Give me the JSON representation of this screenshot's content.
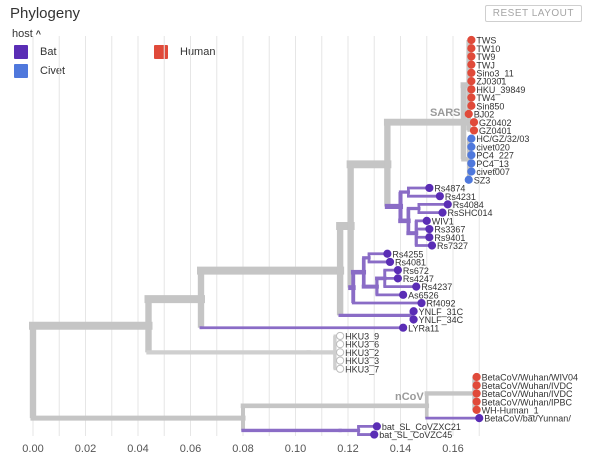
{
  "header": {
    "title": "Phylogeny",
    "reset_label": "RESET LAYOUT"
  },
  "legend": {
    "heading": "host",
    "items": [
      {
        "label": "Bat",
        "color": "#5a2db5"
      },
      {
        "label": "Civet",
        "color": "#4f78dc"
      },
      {
        "label": "Human",
        "color": "#e04a3a"
      }
    ]
  },
  "chart_data": {
    "type": "tree",
    "xlim": [
      0,
      0.17
    ],
    "x_ticks": [
      "0.00",
      "0.02",
      "0.04",
      "0.06",
      "0.08",
      "0.10",
      "0.12",
      "0.14",
      "0.16"
    ],
    "grid": true,
    "clade_labels": [
      {
        "label": "SARS",
        "node": "n_sars"
      },
      {
        "label": "nCoV",
        "node": "n_ncov"
      }
    ],
    "tips": [
      {
        "name": "TWS",
        "x": 0.167,
        "host": "Human"
      },
      {
        "name": "TW10",
        "x": 0.167,
        "host": "Human"
      },
      {
        "name": "TW9",
        "x": 0.167,
        "host": "Human"
      },
      {
        "name": "TWJ",
        "x": 0.167,
        "host": "Human"
      },
      {
        "name": "Sino3_11",
        "x": 0.167,
        "host": "Human"
      },
      {
        "name": "ZJ0301",
        "x": 0.167,
        "host": "Human"
      },
      {
        "name": "HKU_39849",
        "x": 0.167,
        "host": "Human"
      },
      {
        "name": "TW4",
        "x": 0.167,
        "host": "Human"
      },
      {
        "name": "Sin850",
        "x": 0.167,
        "host": "Human"
      },
      {
        "name": "BJ02",
        "x": 0.166,
        "host": "Human"
      },
      {
        "name": "GZ0402",
        "x": 0.168,
        "host": "Human"
      },
      {
        "name": "GZ0401",
        "x": 0.168,
        "host": "Human"
      },
      {
        "name": "HC/GZ/32/03",
        "x": 0.167,
        "host": "Civet"
      },
      {
        "name": "civet020",
        "x": 0.167,
        "host": "Civet"
      },
      {
        "name": "PC4_227",
        "x": 0.167,
        "host": "Civet"
      },
      {
        "name": "PC4_13",
        "x": 0.167,
        "host": "Civet"
      },
      {
        "name": "civet007",
        "x": 0.167,
        "host": "Civet"
      },
      {
        "name": "SZ3",
        "x": 0.166,
        "host": "Civet"
      },
      {
        "name": "Rs4874",
        "x": 0.151,
        "host": "Bat"
      },
      {
        "name": "Rs4231",
        "x": 0.155,
        "host": "Bat"
      },
      {
        "name": "Rs4084",
        "x": 0.158,
        "host": "Bat"
      },
      {
        "name": "RsSHC014",
        "x": 0.156,
        "host": "Bat"
      },
      {
        "name": "WIV1",
        "x": 0.15,
        "host": "Bat"
      },
      {
        "name": "Rs3367",
        "x": 0.151,
        "host": "Bat"
      },
      {
        "name": "Rs9401",
        "x": 0.151,
        "host": "Bat"
      },
      {
        "name": "Rs7327",
        "x": 0.152,
        "host": "Bat"
      },
      {
        "name": "Rs4255",
        "x": 0.135,
        "host": "Bat"
      },
      {
        "name": "Rs4081",
        "x": 0.136,
        "host": "Bat"
      },
      {
        "name": "Rs672",
        "x": 0.139,
        "host": "Bat"
      },
      {
        "name": "Rs4247",
        "x": 0.139,
        "host": "Bat"
      },
      {
        "name": "Rs4237",
        "x": 0.146,
        "host": "Bat"
      },
      {
        "name": "As6526",
        "x": 0.141,
        "host": "Bat"
      },
      {
        "name": "Rf4092",
        "x": 0.148,
        "host": "Bat"
      },
      {
        "name": "YNLF_31C",
        "x": 0.145,
        "host": "Bat"
      },
      {
        "name": "YNLF_34C",
        "x": 0.145,
        "host": "Bat"
      },
      {
        "name": "LYRa11",
        "x": 0.141,
        "host": "Bat"
      },
      {
        "name": "HKU3_9",
        "x": 0.117,
        "host": ""
      },
      {
        "name": "HKU3_6",
        "x": 0.117,
        "host": ""
      },
      {
        "name": "HKU3_2",
        "x": 0.117,
        "host": ""
      },
      {
        "name": "HKU3_3",
        "x": 0.117,
        "host": ""
      },
      {
        "name": "HKU3_7",
        "x": 0.117,
        "host": ""
      },
      {
        "name": "BetaCoV/Wuhan/WIV04",
        "x": 0.169,
        "host": "Human"
      },
      {
        "name": "BetaCoV/Wuhan/IVDC",
        "x": 0.169,
        "host": "Human"
      },
      {
        "name": "BetaCoV/Wuhan/IVDC",
        "x": 0.169,
        "host": "Human"
      },
      {
        "name": "BetaCoV/Wuhan/IPBC",
        "x": 0.169,
        "host": "Human"
      },
      {
        "name": "WH-Human_1",
        "x": 0.169,
        "host": "Human"
      },
      {
        "name": "BetaCoV/bat/Yunnan/",
        "x": 0.17,
        "host": "Bat"
      },
      {
        "name": "bat_SL_CoVZXC21",
        "x": 0.131,
        "host": "Bat"
      },
      {
        "name": "bat_SL_CoVZC45",
        "x": 0.13,
        "host": "Bat"
      }
    ],
    "nodes": [
      {
        "id": "n_root",
        "x": 0.0,
        "parent": null,
        "children": [
          "n_big",
          "n_beta"
        ]
      },
      {
        "id": "n_big",
        "x": 0.044,
        "parent": "n_root",
        "children": [
          "n_a",
          "n_hku3"
        ]
      },
      {
        "id": "n_a",
        "x": 0.064,
        "parent": "n_big",
        "children": [
          "n_b",
          "n_lyra"
        ]
      },
      {
        "id": "n_b",
        "x": 0.117,
        "parent": "n_a",
        "children": [
          "n_c",
          "n_ynlf"
        ]
      },
      {
        "id": "n_c",
        "x": 0.121,
        "parent": "n_b",
        "children": [
          "n_sarsrel",
          "n_rfgrp"
        ]
      },
      {
        "id": "n_sarsrel",
        "x": 0.135,
        "parent": "n_c",
        "children": [
          "n_sars",
          "n_rsgrp"
        ]
      },
      {
        "id": "n_sars",
        "x": 0.164,
        "parent": "n_sarsrel",
        "children": [
          "n_human",
          "n_civet"
        ]
      },
      {
        "id": "n_human",
        "x": 0.166,
        "parent": "n_sars",
        "children": [
          "TWS",
          "TW10",
          "TW9",
          "TWJ",
          "Sino3_11",
          "ZJ0301",
          "HKU_39849",
          "TW4",
          "Sin850",
          "BJ02",
          "GZ0402",
          "GZ0401"
        ]
      },
      {
        "id": "n_civet",
        "x": 0.166,
        "parent": "n_sars",
        "children": [
          "HC/GZ/32/03",
          "civet020",
          "PC4_227",
          "PC4_13",
          "civet007",
          "SZ3"
        ]
      },
      {
        "id": "n_rsgrp",
        "x": 0.14,
        "parent": "n_sarsrel",
        "children": [
          "n_rs1",
          "n_rs2"
        ]
      },
      {
        "id": "n_rs1",
        "x": 0.143,
        "parent": "n_rsgrp",
        "children": [
          "Rs4874",
          "Rs4231"
        ]
      },
      {
        "id": "n_rs2",
        "x": 0.143,
        "parent": "n_rsgrp",
        "children": [
          "n_rs3",
          "n_rs4"
        ]
      },
      {
        "id": "n_rs3",
        "x": 0.147,
        "parent": "n_rs2",
        "children": [
          "Rs4084",
          "RsSHC014"
        ]
      },
      {
        "id": "n_rs4",
        "x": 0.146,
        "parent": "n_rs2",
        "children": [
          "WIV1",
          "Rs3367",
          "Rs9401",
          "Rs7327"
        ]
      },
      {
        "id": "n_rfgrp",
        "x": 0.122,
        "parent": "n_c",
        "children": [
          "n_rf1",
          "Rf4092"
        ]
      },
      {
        "id": "n_rf1",
        "x": 0.126,
        "parent": "n_rfgrp",
        "children": [
          "n_rf2",
          "n_rf3"
        ]
      },
      {
        "id": "n_rf2",
        "x": 0.128,
        "parent": "n_rf1",
        "children": [
          "Rs4255",
          "Rs4081"
        ]
      },
      {
        "id": "n_rf3",
        "x": 0.131,
        "parent": "n_rf1",
        "children": [
          "n_rf4",
          "As6526"
        ]
      },
      {
        "id": "n_rf4",
        "x": 0.134,
        "parent": "n_rf3",
        "children": [
          "Rs672",
          "Rs4247",
          "Rs4237"
        ]
      },
      {
        "id": "n_ynlf",
        "x": 0.144,
        "parent": "n_b",
        "children": [
          "YNLF_31C",
          "YNLF_34C"
        ]
      },
      {
        "id": "n_lyra",
        "x": 0.064,
        "parent": "n_a",
        "children": [
          "LYRa11"
        ]
      },
      {
        "id": "n_hku3",
        "x": 0.105,
        "parent": "n_big",
        "children": [
          "n_hku3b"
        ]
      },
      {
        "id": "n_hku3b",
        "x": 0.115,
        "parent": "n_hku3",
        "children": [
          "HKU3_9",
          "HKU3_6",
          "HKU3_2",
          "HKU3_3",
          "HKU3_7"
        ]
      },
      {
        "id": "n_beta",
        "x": 0.08,
        "parent": "n_root",
        "children": [
          "n_ncov",
          "n_zc"
        ]
      },
      {
        "id": "n_ncov",
        "x": 0.15,
        "parent": "n_beta",
        "children": [
          "n_ncovh",
          "BetaCoV/bat/Yunnan/"
        ]
      },
      {
        "id": "n_ncovh",
        "x": 0.168,
        "parent": "n_ncov",
        "children": [
          "BetaCoV/Wuhan/WIV04",
          "BetaCoV/Wuhan/IVDC",
          "BetaCoV/Wuhan/IVDC#2",
          "BetaCoV/Wuhan/IPBC",
          "WH-Human_1"
        ]
      },
      {
        "id": "n_zc",
        "x": 0.117,
        "parent": "n_beta",
        "children": [
          "n_zc2"
        ]
      },
      {
        "id": "n_zc2",
        "x": 0.124,
        "parent": "n_zc",
        "children": [
          "bat_SL_CoVZXC21",
          "bat_SL_CoVZC45"
        ]
      }
    ]
  }
}
